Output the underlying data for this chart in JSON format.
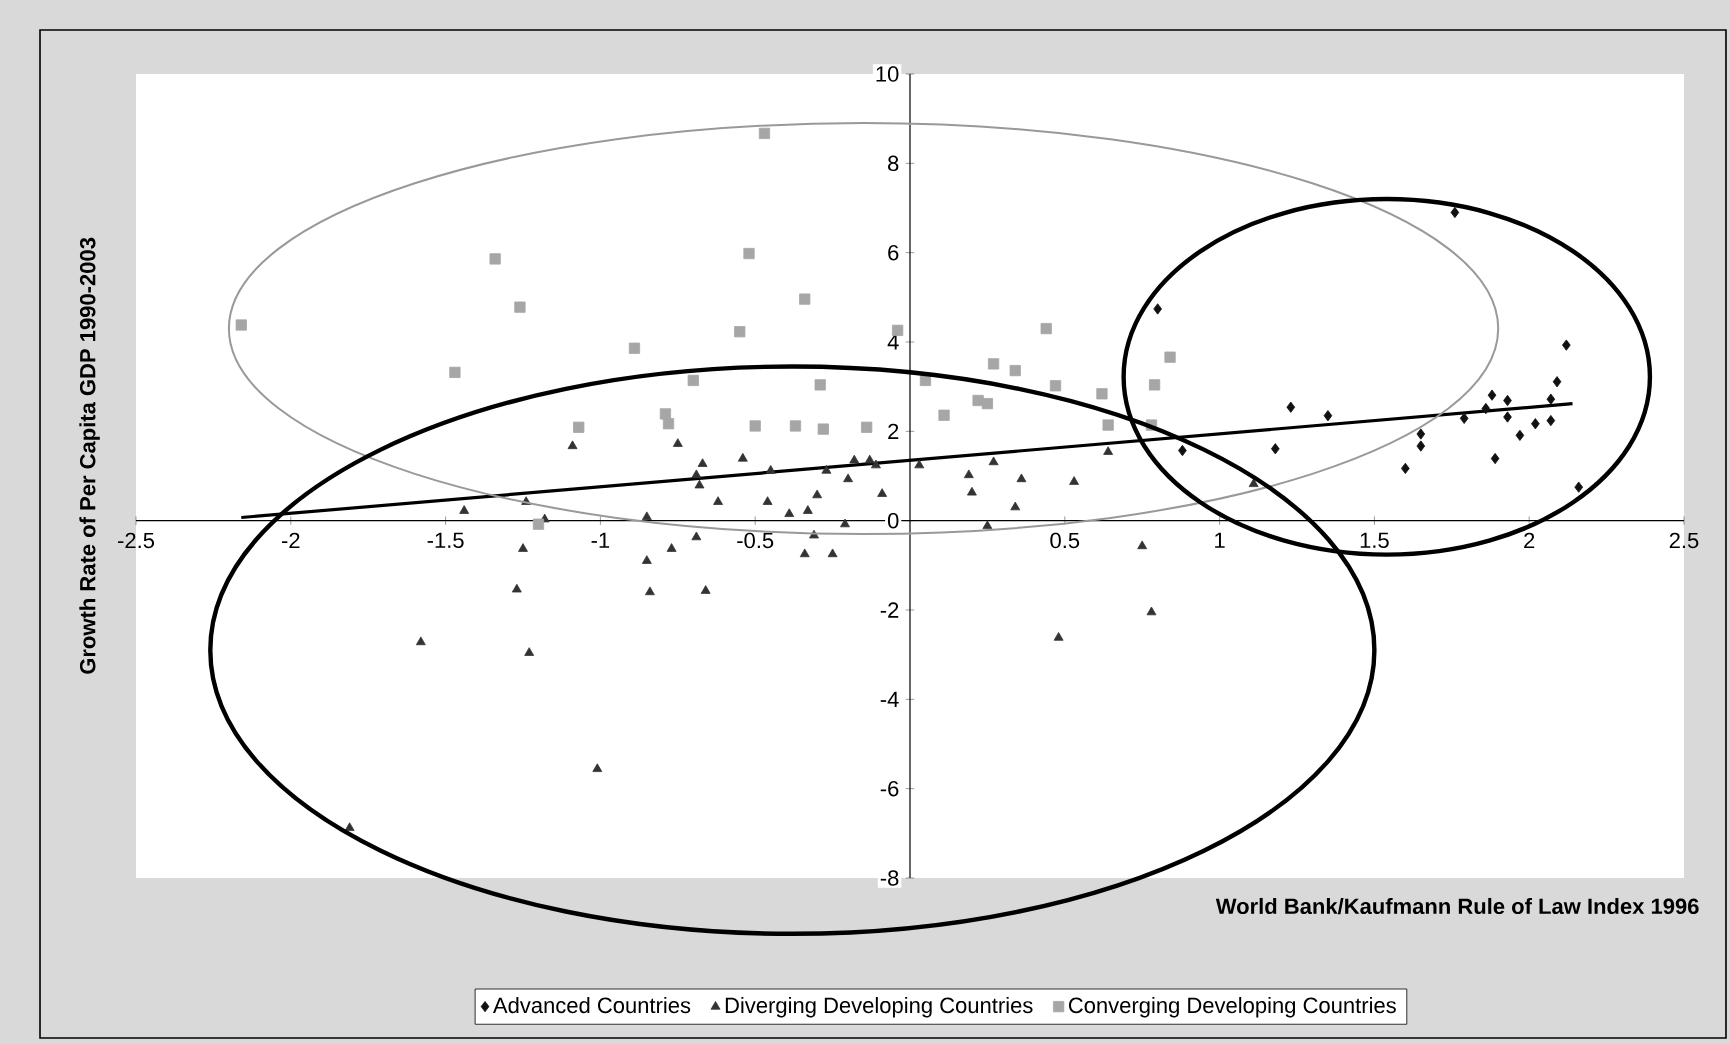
{
  "chart_data": {
    "type": "scatter",
    "xlabel": "World Bank/Kaufmann Rule of Law Index 1996",
    "ylabel": "Growth Rate of Per Capita GDP 1990-2003",
    "xlim": [
      -2.5,
      2.5
    ],
    "ylim": [
      -8,
      10
    ],
    "xticks": [
      -2.5,
      -2,
      -1.5,
      -1,
      -0.5,
      0.5,
      1,
      1.5,
      2,
      2.5
    ],
    "yticks": [
      -8,
      -6,
      -4,
      -2,
      0,
      2,
      4,
      6,
      8,
      10
    ],
    "grid": false,
    "legend": "bottom",
    "series": [
      {
        "name": "Advanced Countries",
        "color": "#111111",
        "marker": "diamond",
        "x": [
          0.8,
          0.88,
          1.23,
          1.18,
          1.35,
          1.76,
          1.6,
          1.65,
          1.65,
          1.79,
          1.86,
          1.88,
          1.89,
          1.93,
          1.93,
          1.97,
          2.02,
          2.07,
          2.07,
          2.09,
          2.12,
          2.16
        ],
        "values": [
          4.74,
          1.57,
          2.54,
          1.61,
          2.35,
          6.9,
          1.17,
          1.67,
          1.94,
          2.29,
          2.51,
          2.81,
          1.39,
          2.69,
          2.32,
          1.91,
          2.17,
          2.24,
          2.72,
          3.11,
          3.93,
          0.75
        ]
      },
      {
        "name": "Diverging Developing Countries",
        "color": "#333333",
        "marker": "triangle",
        "x": [
          -1.09,
          -0.75,
          -0.67,
          -0.69,
          -0.68,
          -0.54,
          -0.62,
          -0.45,
          -0.46,
          -0.39,
          -0.33,
          -0.3,
          -0.27,
          -0.2,
          -0.18,
          -0.21,
          -0.13,
          -1.44,
          -1.24,
          -1.18,
          -0.85,
          -1.25,
          -0.69,
          -0.85,
          -0.77,
          -0.31,
          -0.34,
          -0.25,
          -1.27,
          -0.84,
          -0.66,
          -1.58,
          -1.23,
          -1.01,
          -1.81,
          -0.11,
          -0.09,
          0.03,
          0.19,
          0.2,
          0.27,
          0.25,
          0.36,
          0.34,
          0.53,
          0.64,
          1.11,
          0.75,
          0.48,
          0.78
        ],
        "values": [
          1.67,
          1.72,
          1.27,
          1.02,
          0.79,
          1.39,
          0.42,
          1.12,
          0.42,
          0.15,
          0.22,
          0.57,
          1.12,
          0.93,
          1.35,
          -0.08,
          1.35,
          0.22,
          0.42,
          0.03,
          0.08,
          -0.63,
          -0.37,
          -0.9,
          -0.63,
          -0.33,
          -0.75,
          -0.75,
          -1.54,
          -1.6,
          -1.57,
          -2.72,
          -2.96,
          -5.56,
          -6.88,
          1.24,
          0.6,
          1.24,
          1.02,
          0.63,
          1.31,
          -0.12,
          0.93,
          0.3,
          0.87,
          1.54,
          0.82,
          -0.57,
          -2.62,
          -2.05
        ]
      },
      {
        "name": "Converging Developing Countries",
        "color": "#a6a6a6",
        "marker": "square",
        "x": [
          -2.16,
          -1.34,
          -1.26,
          -1.47,
          -0.89,
          -0.47,
          -0.52,
          -0.55,
          -0.34,
          -0.29,
          -0.7,
          -0.79,
          -0.78,
          -1.07,
          -0.5,
          -0.37,
          -0.28,
          -0.14,
          -1.2,
          -0.04,
          0.44,
          0.05,
          0.27,
          0.34,
          0.47,
          0.22,
          0.25,
          0.11,
          0.62,
          0.64,
          0.84,
          0.79,
          0.78
        ],
        "values": [
          4.38,
          5.86,
          4.78,
          3.32,
          3.86,
          8.67,
          5.98,
          4.23,
          4.96,
          3.04,
          3.14,
          2.39,
          2.17,
          2.09,
          2.12,
          2.12,
          2.05,
          2.09,
          -0.08,
          4.26,
          4.3,
          3.14,
          3.51,
          3.36,
          3.02,
          2.69,
          2.62,
          2.36,
          2.84,
          2.14,
          3.66,
          3.04,
          2.14
        ]
      },
      {
        "type": "line",
        "color": "#000000",
        "x": [
          -2.16,
          2.14
        ],
        "values": [
          0.07,
          2.62
        ]
      }
    ]
  }
}
